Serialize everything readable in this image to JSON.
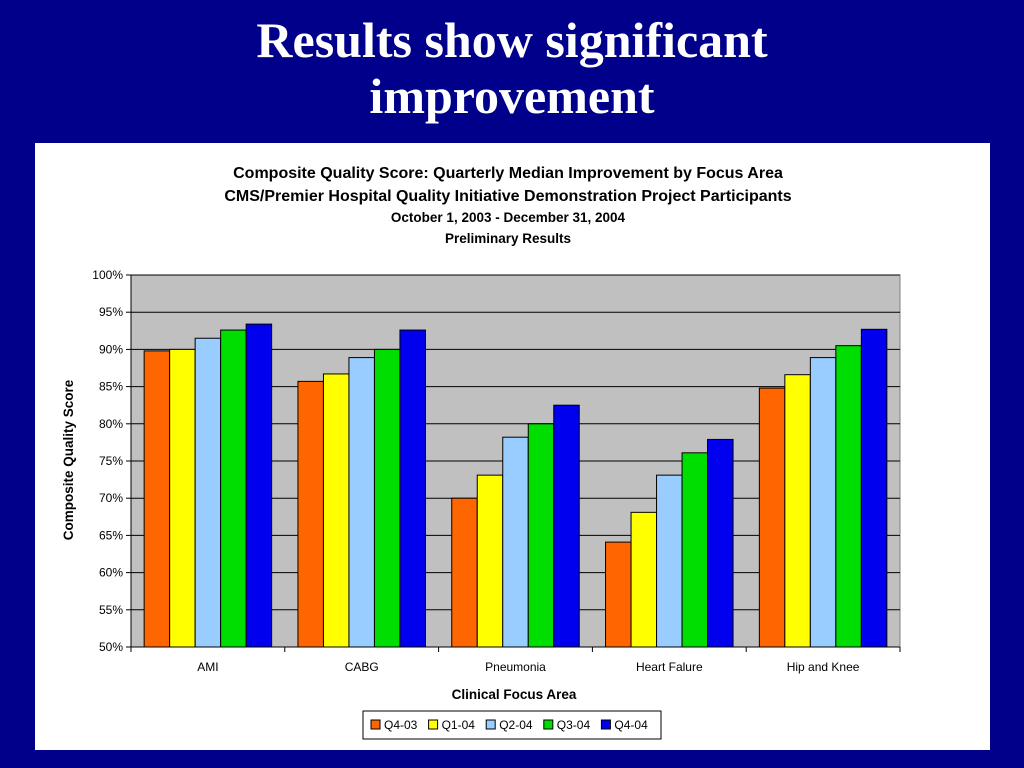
{
  "slide": {
    "title_line1": "Results show significant",
    "title_line2": "improvement"
  },
  "colors": {
    "background": "#00008a",
    "plot_area": "#c0c0c0",
    "panel": "#ffffff"
  },
  "chart_data": {
    "type": "bar",
    "title": "Composite Quality Score: Quarterly Median Improvement by Focus Area",
    "subtitle": "CMS/Premier Hospital Quality Initiative Demonstration Project Participants",
    "subtitle2": "October 1, 2003 - December 31, 2004",
    "subtitle3": "Preliminary Results",
    "xlabel": "Clinical Focus Area",
    "ylabel": "Composite Quality Score",
    "ylim": [
      50,
      100
    ],
    "yticks": [
      50,
      55,
      60,
      65,
      70,
      75,
      80,
      85,
      90,
      95,
      100
    ],
    "ytick_labels": [
      "50%",
      "55%",
      "60%",
      "65%",
      "70%",
      "75%",
      "80%",
      "85%",
      "90%",
      "95%",
      "100%"
    ],
    "grid": true,
    "legend_position": "bottom",
    "categories": [
      "AMI",
      "CABG",
      "Pneumonia",
      "Heart Falure",
      "Hip and Knee"
    ],
    "series": [
      {
        "name": "Q4-03",
        "color": "#ff6600",
        "values": [
          89.8,
          85.7,
          70.0,
          64.1,
          84.8
        ]
      },
      {
        "name": "Q1-04",
        "color": "#ffff00",
        "values": [
          90.0,
          86.7,
          73.1,
          68.1,
          86.6
        ]
      },
      {
        "name": "Q2-04",
        "color": "#99ccff",
        "values": [
          91.5,
          88.9,
          78.2,
          73.1,
          88.9
        ]
      },
      {
        "name": "Q3-04",
        "color": "#00dd00",
        "values": [
          92.6,
          90.0,
          80.0,
          76.1,
          90.5
        ]
      },
      {
        "name": "Q4-04",
        "color": "#0000ee",
        "values": [
          93.4,
          92.6,
          82.5,
          77.9,
          92.7
        ]
      }
    ]
  }
}
